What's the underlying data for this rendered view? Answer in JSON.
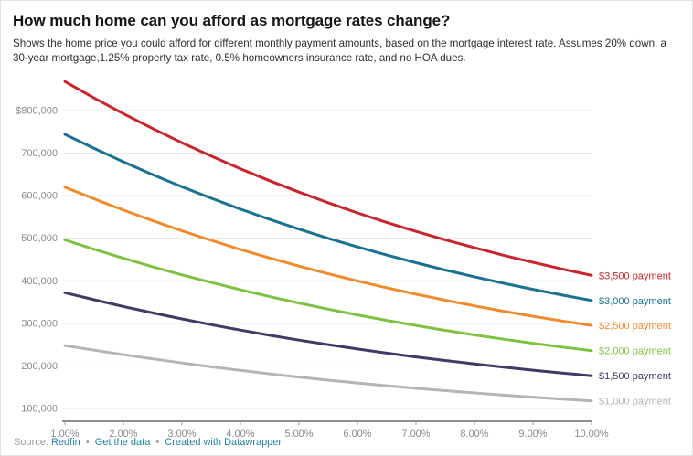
{
  "header": {
    "title": "How much home can you afford as mortgage rates change?",
    "description": "Shows the home price you could afford for different monthly payment amounts, based on the mortgage interest rate. Assumes 20% down, a 30-year mortgage,1.25% property tax rate, 0.5% homeowners insurance rate, and no HOA dues."
  },
  "footer": {
    "source_label": "Source:",
    "source_link": "Redfin",
    "separator": "•",
    "data_link": "Get the data",
    "credit_link": "Created with Datawrapper"
  },
  "colors": {
    "link_blue": "#1d81a2",
    "grid": "#e3e3e3",
    "axis": "#1c1c1c",
    "tick_text": "#8a8a8a"
  },
  "chart_data": {
    "type": "line",
    "title": "How much home can you afford as mortgage rates change?",
    "xlabel": "",
    "ylabel": "",
    "grid": "horizontal",
    "legend_position": "right-of-line-end",
    "x": [
      1,
      1.5,
      2,
      2.5,
      3,
      3.5,
      4,
      4.5,
      5,
      5.5,
      6,
      6.5,
      7,
      7.5,
      8,
      8.5,
      9,
      9.5,
      10
    ],
    "x_ticks": [
      {
        "value": 1,
        "label": "1.00%"
      },
      {
        "value": 2,
        "label": "2.00%"
      },
      {
        "value": 3,
        "label": "3.00%"
      },
      {
        "value": 4,
        "label": "4.00%"
      },
      {
        "value": 5,
        "label": "5.00%"
      },
      {
        "value": 6,
        "label": "6.00%"
      },
      {
        "value": 7,
        "label": "7.00%"
      },
      {
        "value": 8,
        "label": "8.00%"
      },
      {
        "value": 9,
        "label": "9.00%"
      },
      {
        "value": 10,
        "label": "10.00%"
      }
    ],
    "y_ticks": [
      {
        "value": 800000,
        "label": "$800,000"
      },
      {
        "value": 700000,
        "label": "700,000"
      },
      {
        "value": 600000,
        "label": "600,000"
      },
      {
        "value": 500000,
        "label": "500,000"
      },
      {
        "value": 400000,
        "label": "400,000"
      },
      {
        "value": 300000,
        "label": "300,000"
      },
      {
        "value": 200000,
        "label": "200,000"
      },
      {
        "value": 100000,
        "label": "100,000"
      }
    ],
    "ylim_plotted": [
      70000,
      892000
    ],
    "series": [
      {
        "id": "3500",
        "label": "$3,500 payment",
        "color": "#c9252c",
        "values": [
          868200,
          829500,
          792700,
          757700,
          724500,
          693000,
          663200,
          635000,
          608400,
          583300,
          559600,
          537200,
          516200,
          496300,
          477600,
          459900,
          443300,
          427600,
          412800
        ]
      },
      {
        "id": "3000",
        "label": "$3,000 payment",
        "color": "#1a7290",
        "values": [
          744100,
          711000,
          679500,
          649400,
          621000,
          594000,
          568400,
          544300,
          521500,
          499900,
          479600,
          460500,
          442400,
          425400,
          409400,
          394200,
          380000,
          366500,
          353800
        ]
      },
      {
        "id": "2500",
        "label": "$2,500 payment",
        "color": "#ef8b2c",
        "values": [
          620100,
          592500,
          566200,
          541200,
          517500,
          495000,
          473700,
          453600,
          434600,
          416600,
          399700,
          383700,
          368700,
          354500,
          341100,
          328500,
          316600,
          305400,
          294900
        ]
      },
      {
        "id": "2000",
        "label": "$2,000 payment",
        "color": "#7fc241",
        "values": [
          496100,
          474000,
          453000,
          433000,
          414000,
          396000,
          379000,
          362900,
          347700,
          333300,
          319800,
          307000,
          295000,
          283600,
          272900,
          262800,
          253300,
          244300,
          235900
        ]
      },
      {
        "id": "1500",
        "label": "$1,500 payment",
        "color": "#413a66",
        "values": [
          372100,
          355500,
          339700,
          324700,
          310500,
          297000,
          284200,
          272100,
          260700,
          250000,
          239800,
          230200,
          221200,
          212700,
          204700,
          197100,
          190000,
          183300,
          176900
        ]
      },
      {
        "id": "1000",
        "label": "$1,000 payment",
        "color": "#b5b5b5",
        "values": [
          248000,
          237000,
          226500,
          216500,
          207000,
          198000,
          189500,
          181400,
          173800,
          166600,
          159900,
          153500,
          147500,
          141800,
          136500,
          131400,
          126700,
          122200,
          117900
        ]
      }
    ]
  }
}
